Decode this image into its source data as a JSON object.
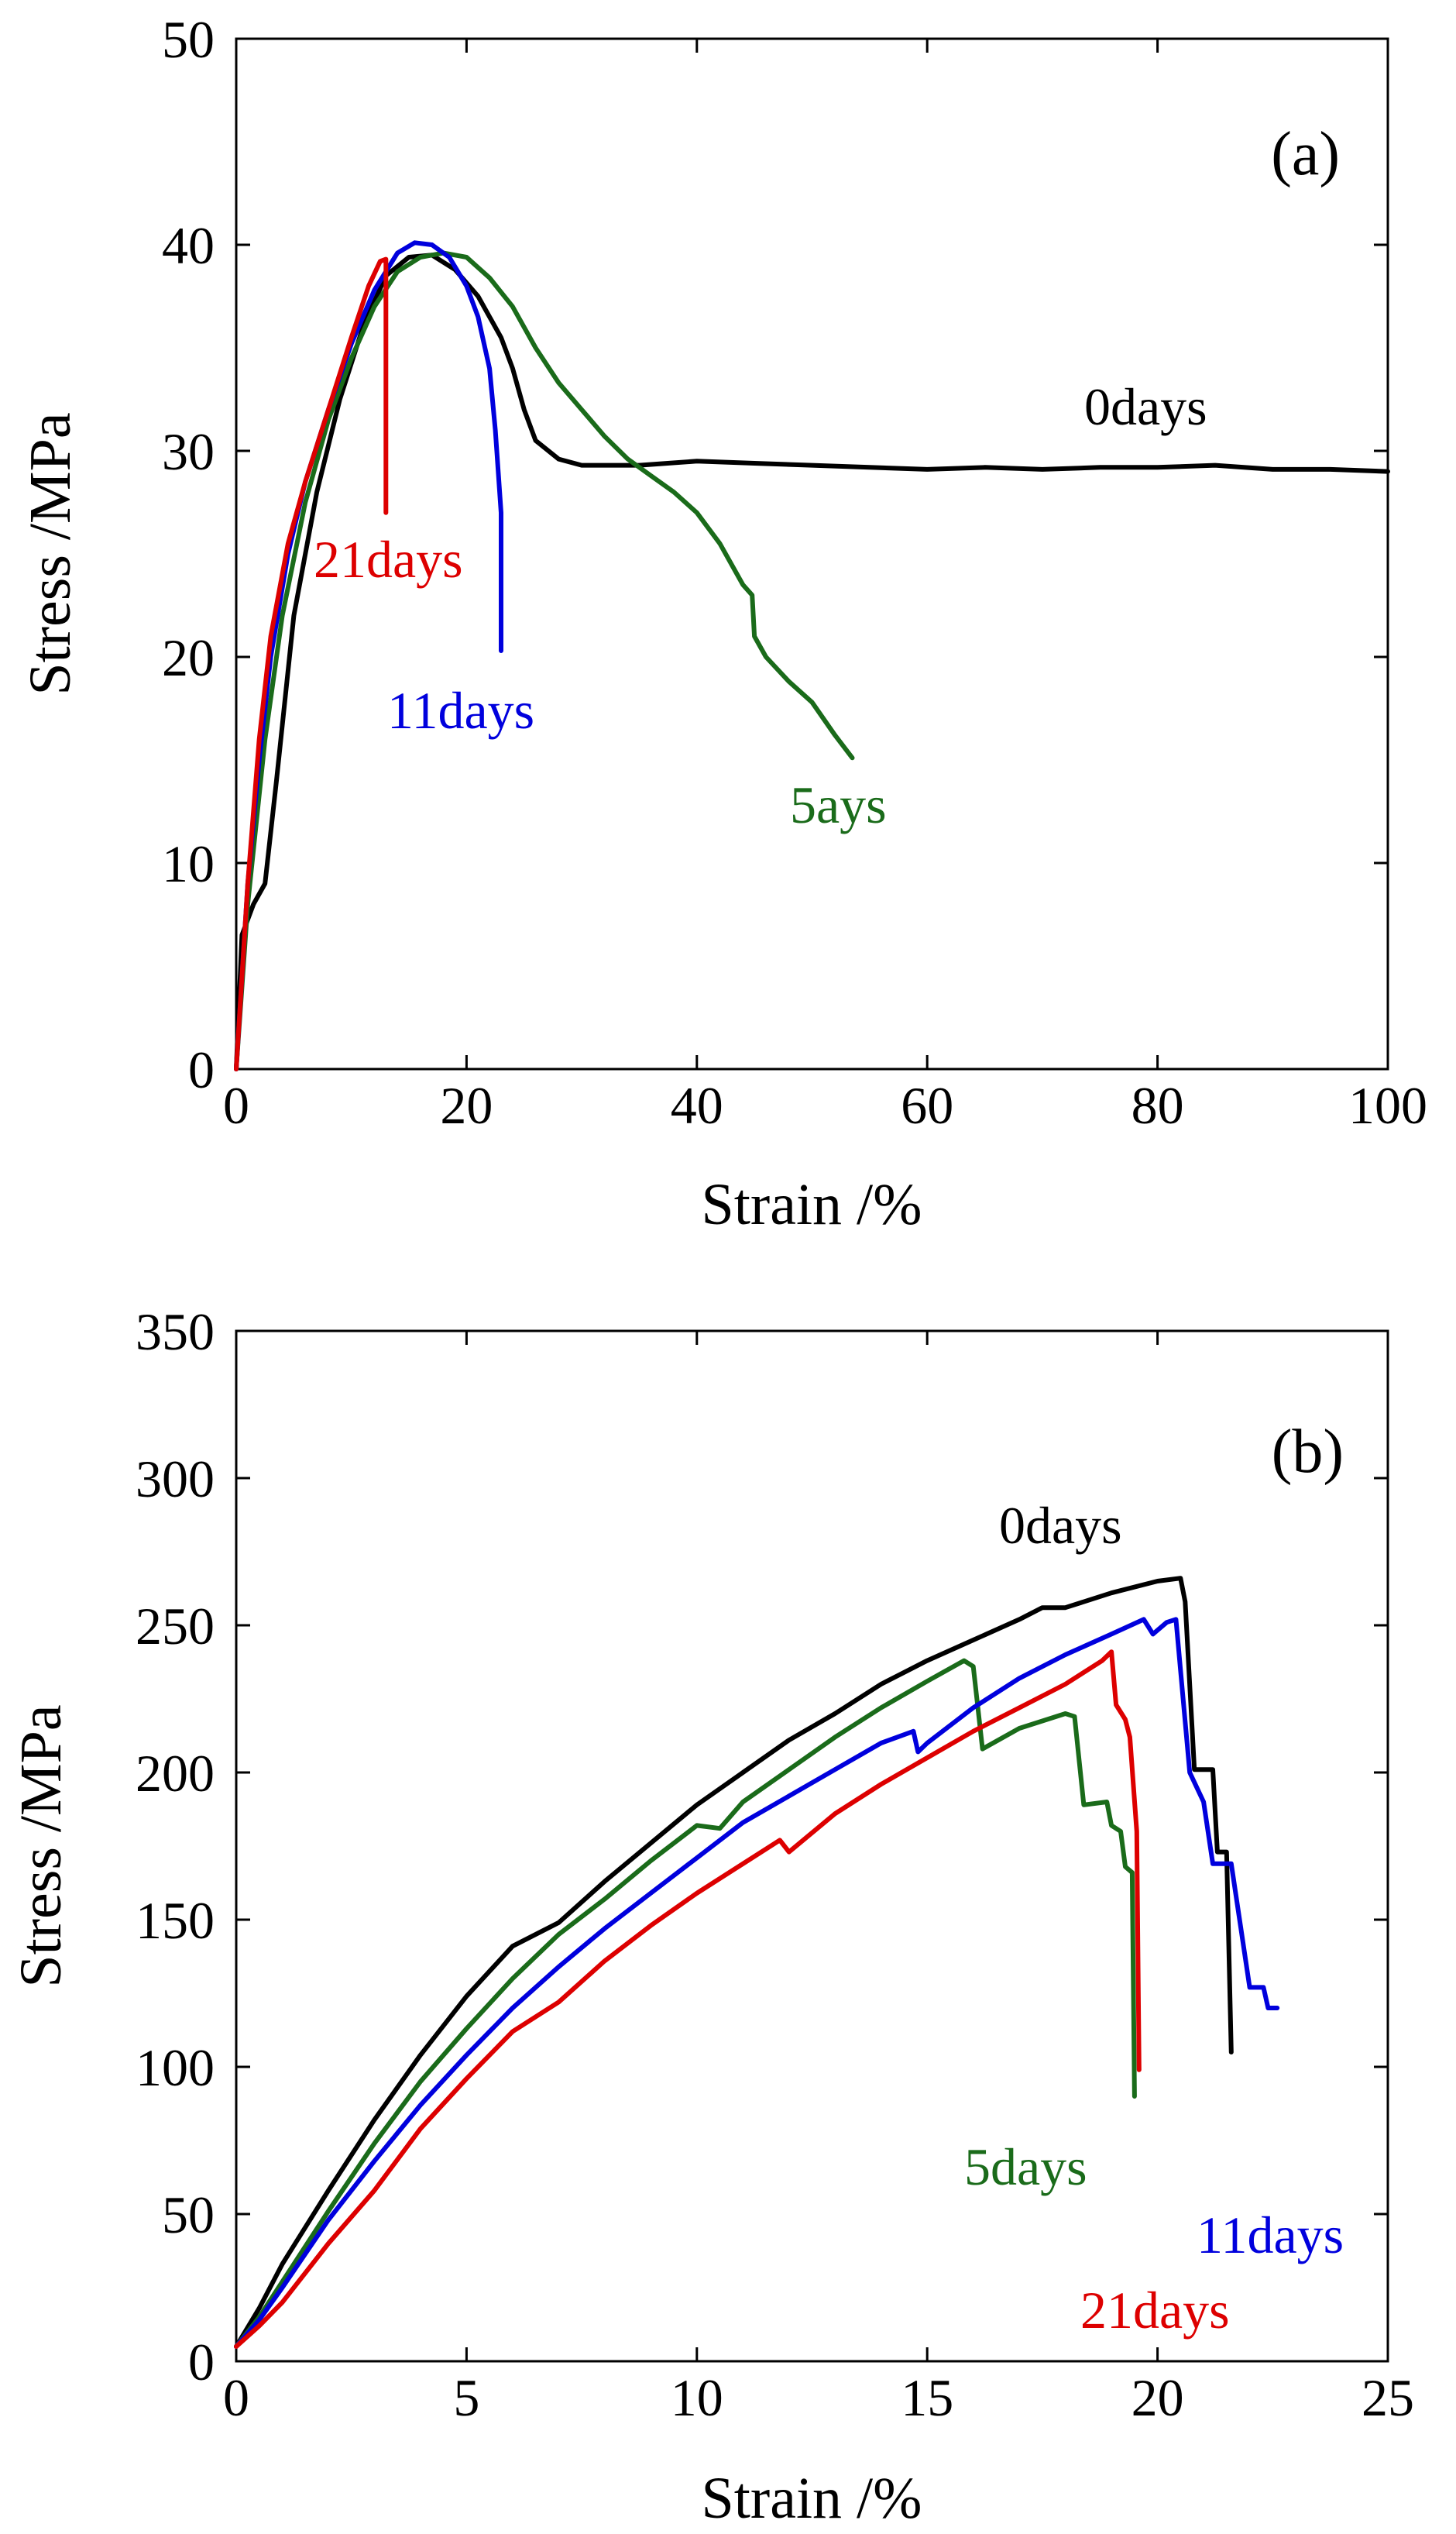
{
  "chart_data": [
    {
      "type": "line",
      "panel_label": "(a)",
      "xlabel": "Strain /%",
      "ylabel": "Stress /MPa",
      "xlim": [
        0,
        100
      ],
      "ylim": [
        0,
        50
      ],
      "xticks": [
        0,
        20,
        40,
        60,
        80,
        100
      ],
      "yticks": [
        0,
        10,
        20,
        30,
        40,
        50
      ],
      "grid": false,
      "legend": "none",
      "series": [
        {
          "name": "0days",
          "color": "#000000",
          "points": [
            [
              0,
              0
            ],
            [
              0.5,
              6.5
            ],
            [
              1.5,
              8
            ],
            [
              2.5,
              9
            ],
            [
              3.5,
              14
            ],
            [
              5,
              22
            ],
            [
              7,
              28
            ],
            [
              9,
              32.5
            ],
            [
              11,
              36
            ],
            [
              13,
              38.5
            ],
            [
              15,
              39.4
            ],
            [
              17,
              39.5
            ],
            [
              19,
              38.8
            ],
            [
              21,
              37.5
            ],
            [
              23,
              35.5
            ],
            [
              24,
              34
            ],
            [
              25,
              32
            ],
            [
              26,
              30.5
            ],
            [
              28,
              29.6
            ],
            [
              30,
              29.3
            ],
            [
              35,
              29.3
            ],
            [
              40,
              29.5
            ],
            [
              45,
              29.4
            ],
            [
              50,
              29.3
            ],
            [
              55,
              29.2
            ],
            [
              60,
              29.1
            ],
            [
              65,
              29.2
            ],
            [
              70,
              29.1
            ],
            [
              75,
              29.2
            ],
            [
              80,
              29.2
            ],
            [
              85,
              29.3
            ],
            [
              90,
              29.1
            ],
            [
              95,
              29.1
            ],
            [
              100,
              29
            ]
          ]
        },
        {
          "name": "5ays",
          "color": "#1a6b1a",
          "points": [
            [
              0,
              0
            ],
            [
              1,
              8
            ],
            [
              2.5,
              16
            ],
            [
              4,
              22
            ],
            [
              6,
              27.5
            ],
            [
              8,
              31.5
            ],
            [
              10,
              34.5
            ],
            [
              12,
              37
            ],
            [
              14,
              38.7
            ],
            [
              16,
              39.4
            ],
            [
              18,
              39.6
            ],
            [
              20,
              39.4
            ],
            [
              22,
              38.4
            ],
            [
              24,
              37
            ],
            [
              26,
              35
            ],
            [
              28,
              33.3
            ],
            [
              30,
              32
            ],
            [
              32,
              30.7
            ],
            [
              34,
              29.6
            ],
            [
              36,
              28.8
            ],
            [
              38,
              28
            ],
            [
              40,
              27
            ],
            [
              42,
              25.5
            ],
            [
              44,
              23.5
            ],
            [
              44.8,
              23
            ],
            [
              45,
              21
            ],
            [
              46,
              20
            ],
            [
              48,
              18.8
            ],
            [
              50,
              17.8
            ],
            [
              52,
              16.2
            ],
            [
              53.5,
              15.1
            ]
          ]
        },
        {
          "name": "11days",
          "color": "#0000dd",
          "points": [
            [
              0,
              0
            ],
            [
              1,
              9
            ],
            [
              2,
              15
            ],
            [
              3,
              20
            ],
            [
              4.5,
              25
            ],
            [
              6,
              28.5
            ],
            [
              8,
              32
            ],
            [
              10,
              35.2
            ],
            [
              12,
              37.8
            ],
            [
              14,
              39.6
            ],
            [
              15.5,
              40.1
            ],
            [
              17,
              40
            ],
            [
              18.5,
              39.4
            ],
            [
              20,
              38
            ],
            [
              21,
              36.5
            ],
            [
              22,
              34
            ],
            [
              22.5,
              31
            ],
            [
              23,
              27
            ],
            [
              23,
              20.3
            ]
          ]
        },
        {
          "name": "21days",
          "color": "#dd0000",
          "points": [
            [
              0,
              0
            ],
            [
              1,
              9
            ],
            [
              2,
              16
            ],
            [
              3,
              21
            ],
            [
              4.5,
              25.5
            ],
            [
              6,
              28.5
            ],
            [
              8,
              32
            ],
            [
              10,
              35.5
            ],
            [
              11.5,
              38
            ],
            [
              12.5,
              39.2
            ],
            [
              13,
              39.3
            ],
            [
              13,
              27
            ]
          ]
        }
      ]
    },
    {
      "type": "line",
      "panel_label": "(b)",
      "xlabel": "Strain /%",
      "ylabel": "Stress /MPa",
      "xlim": [
        0,
        25
      ],
      "ylim": [
        0,
        350
      ],
      "xticks": [
        0,
        5,
        10,
        15,
        20,
        25
      ],
      "yticks": [
        0,
        50,
        100,
        150,
        200,
        250,
        300,
        350
      ],
      "grid": false,
      "legend": "none",
      "series": [
        {
          "name": "0days",
          "color": "#000000",
          "points": [
            [
              0,
              5
            ],
            [
              0.5,
              18
            ],
            [
              1,
              33
            ],
            [
              2,
              58
            ],
            [
              3,
              82
            ],
            [
              4,
              104
            ],
            [
              5,
              124
            ],
            [
              6,
              141
            ],
            [
              7,
              149
            ],
            [
              8,
              163
            ],
            [
              9,
              176
            ],
            [
              10,
              189
            ],
            [
              11,
              200
            ],
            [
              12,
              211
            ],
            [
              13,
              220
            ],
            [
              14,
              230
            ],
            [
              15,
              238
            ],
            [
              16,
              245
            ],
            [
              17,
              252
            ],
            [
              17.5,
              256
            ],
            [
              18,
              256
            ],
            [
              19,
              261
            ],
            [
              20,
              265
            ],
            [
              20.5,
              266
            ],
            [
              20.6,
              258
            ],
            [
              20.8,
              201
            ],
            [
              21.2,
              201
            ],
            [
              21.3,
              173
            ],
            [
              21.5,
              173
            ],
            [
              21.6,
              105
            ]
          ]
        },
        {
          "name": "5days",
          "color": "#1a6b1a",
          "points": [
            [
              0,
              5
            ],
            [
              0.5,
              15
            ],
            [
              1,
              27
            ],
            [
              2,
              51
            ],
            [
              3,
              74
            ],
            [
              4,
              95
            ],
            [
              5,
              113
            ],
            [
              6,
              130
            ],
            [
              7,
              145
            ],
            [
              8,
              157
            ],
            [
              9,
              170
            ],
            [
              10,
              182
            ],
            [
              10.5,
              181
            ],
            [
              11,
              190
            ],
            [
              12,
              201
            ],
            [
              13,
              212
            ],
            [
              14,
              222
            ],
            [
              15,
              231
            ],
            [
              15.8,
              238
            ],
            [
              16,
              236
            ],
            [
              16.2,
              208
            ],
            [
              17,
              215
            ],
            [
              18,
              220
            ],
            [
              18.2,
              219
            ],
            [
              18.4,
              189
            ],
            [
              18.9,
              190
            ],
            [
              19,
              182
            ],
            [
              19.2,
              180
            ],
            [
              19.3,
              168
            ],
            [
              19.45,
              166
            ],
            [
              19.5,
              90
            ]
          ]
        },
        {
          "name": "11days",
          "color": "#0000dd",
          "points": [
            [
              0,
              5
            ],
            [
              0.5,
              14
            ],
            [
              1,
              25
            ],
            [
              2,
              48
            ],
            [
              3,
              68
            ],
            [
              4,
              87
            ],
            [
              5,
              104
            ],
            [
              6,
              120
            ],
            [
              7,
              134
            ],
            [
              8,
              147
            ],
            [
              9,
              159
            ],
            [
              10,
              171
            ],
            [
              11,
              183
            ],
            [
              12,
              192
            ],
            [
              13,
              201
            ],
            [
              14,
              210
            ],
            [
              14.7,
              214
            ],
            [
              14.8,
              207
            ],
            [
              15,
              210
            ],
            [
              16,
              222
            ],
            [
              17,
              232
            ],
            [
              18,
              240
            ],
            [
              19,
              247
            ],
            [
              19.7,
              252
            ],
            [
              19.9,
              247
            ],
            [
              20.2,
              251
            ],
            [
              20.4,
              252
            ],
            [
              20.7,
              200
            ],
            [
              21,
              190
            ],
            [
              21.2,
              169
            ],
            [
              21.6,
              169
            ],
            [
              21.8,
              148
            ],
            [
              22,
              127
            ],
            [
              22.3,
              127
            ],
            [
              22.4,
              120
            ],
            [
              22.6,
              120
            ]
          ]
        },
        {
          "name": "21days",
          "color": "#dd0000",
          "points": [
            [
              0,
              5
            ],
            [
              0.5,
              12
            ],
            [
              1,
              20
            ],
            [
              2,
              40
            ],
            [
              3,
              58
            ],
            [
              4,
              79
            ],
            [
              5,
              96
            ],
            [
              6,
              112
            ],
            [
              7,
              122
            ],
            [
              8,
              136
            ],
            [
              9,
              148
            ],
            [
              10,
              159
            ],
            [
              11,
              169
            ],
            [
              11.8,
              177
            ],
            [
              12,
              173
            ],
            [
              13,
              186
            ],
            [
              14,
              196
            ],
            [
              15,
              205
            ],
            [
              16,
              214
            ],
            [
              17,
              222
            ],
            [
              18,
              230
            ],
            [
              18.8,
              238
            ],
            [
              19,
              241
            ],
            [
              19.1,
              223
            ],
            [
              19.3,
              218
            ],
            [
              19.4,
              212
            ],
            [
              19.55,
              180
            ],
            [
              19.6,
              99
            ]
          ]
        }
      ]
    }
  ]
}
